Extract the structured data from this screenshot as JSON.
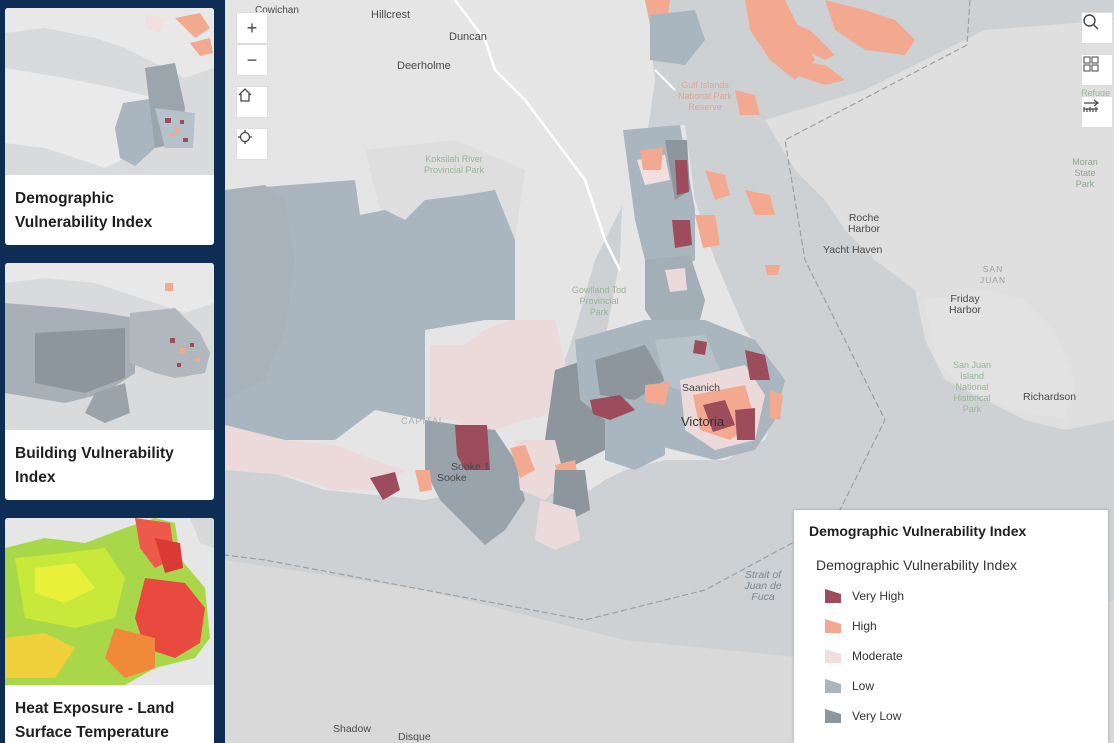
{
  "sidebar": {
    "cards": [
      {
        "title": "Demographic Vulnerability Index"
      },
      {
        "title": "Building Vulnerability Index"
      },
      {
        "title": "Heat Exposure - Land Surface Temperature"
      }
    ]
  },
  "map": {
    "controls": {
      "zoom_in": "+",
      "zoom_out": "−"
    },
    "labels": {
      "cowichan": "Cowichan",
      "hillcrest": "Hillcrest",
      "duncan": "Duncan",
      "deerholme": "Deerholme",
      "koksilah": "Koksilah River Provincial Park",
      "gulf_islands": "Gulf Islands National Park Reserve",
      "gowlland": "Gowlland Tod Provincial Park",
      "roche_harbor": "Roche Harbor",
      "yacht_haven": "Yacht Haven",
      "san_juan": "SAN JUAN",
      "friday_harbor": "Friday Harbor",
      "san_juan_park": "San Juan Island National Historical Park",
      "richardson": "Richardson",
      "moran": "Moran State Park",
      "refuge": "Refuge",
      "saanich": "Saanich",
      "victoria": "Victoria",
      "capital": "CAPITAL",
      "sooke": "Sooke",
      "sooke1": "Sooke 1",
      "strait": "Strait of Juan de Fuca",
      "shadow": "Shadow",
      "disque": "Disque"
    }
  },
  "legend": {
    "title": "Demographic Vulnerability Index",
    "subtitle": "Demographic Vulnerability Index",
    "items": [
      {
        "label": "Very High",
        "color": "#9c4c5b"
      },
      {
        "label": "High",
        "color": "#f3a98f"
      },
      {
        "label": "Moderate",
        "color": "#f1dfe0"
      },
      {
        "label": "Low",
        "color": "#a7b6bf"
      },
      {
        "label": "Very Low",
        "color": "#8d969d"
      }
    ]
  },
  "colors": {
    "sidebar_bg": "#0d2d55",
    "land": "#e6e6e6",
    "water": "#cdd1d4"
  }
}
